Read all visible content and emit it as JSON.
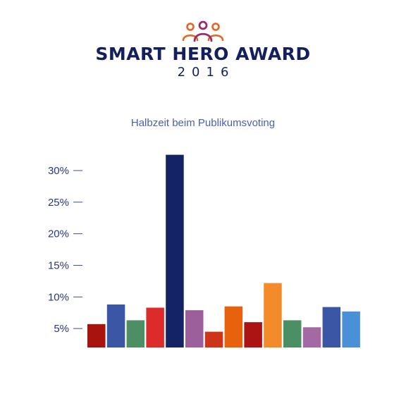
{
  "header": {
    "title": "SMART HERO AWARD",
    "year": "2016",
    "logo_icon": "people-group-icon",
    "colors": {
      "navy": "#14205e",
      "orange": "#e8641e"
    }
  },
  "chart_data": {
    "type": "bar",
    "title": "",
    "subtitle": "Halbzeit beim Publikumsvoting",
    "xlabel": "",
    "ylabel": "",
    "ylim": [
      2,
      31
    ],
    "yticks": [
      5,
      10,
      15,
      20,
      25,
      30
    ],
    "ytick_labels": [
      "5%",
      "10%",
      "15%",
      "20%",
      "25%",
      "30%"
    ],
    "grid": false,
    "legend": "none",
    "values": [
      5.7,
      8.8,
      6.3,
      8.3,
      32.5,
      7.9,
      4.5,
      8.5,
      6.0,
      12.2,
      6.3,
      5.2,
      8.4,
      7.7
    ],
    "colors": [
      "#a8130f",
      "#3c56a6",
      "#4c8f64",
      "#dd2b2b",
      "#142366",
      "#9c5f9b",
      "#cd3518",
      "#e8620e",
      "#ac1414",
      "#f38b2a",
      "#4c8f64",
      "#a468a4",
      "#3c56a6",
      "#4a90d6"
    ]
  }
}
